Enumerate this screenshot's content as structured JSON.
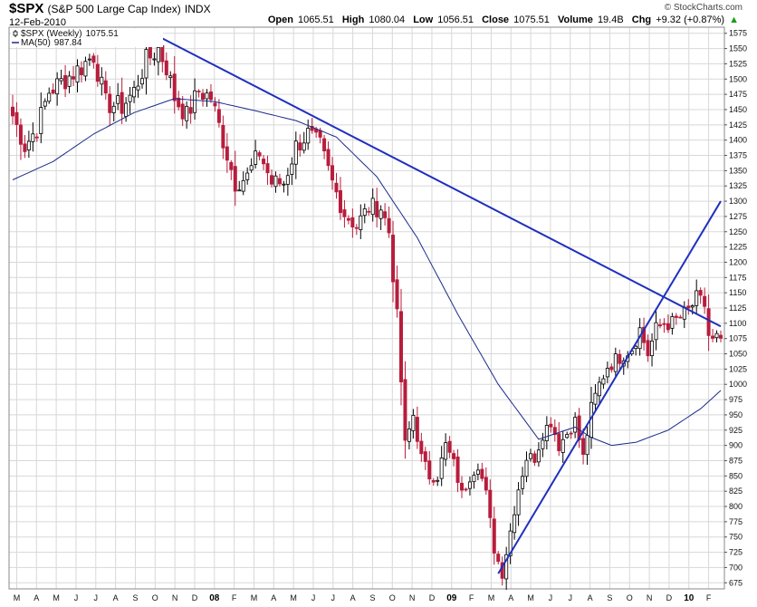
{
  "header": {
    "symbol": "$SPX",
    "description": "(S&P 500 Large Cap Index)",
    "exchange": "INDX",
    "date": "12-Feb-2010",
    "brand": "© StockCharts.com",
    "open_label": "Open",
    "open": "1065.51",
    "high_label": "High",
    "high": "1080.04",
    "low_label": "Low",
    "low": "1056.51",
    "close_label": "Close",
    "close": "1075.51",
    "volume_label": "Volume",
    "volume": "19.4B",
    "chg_label": "Chg",
    "chg": "+9.32 (+0.87%)",
    "chg_arrow": "▲"
  },
  "colors": {
    "up": "#000000",
    "down": "#b81d3c",
    "ma": "#1b2a8a",
    "trendline": "#1f2fbf",
    "grid": "#d8d8d8"
  },
  "chart_data": {
    "type": "candlestick",
    "title": "$SPX (S&P 500 Large Cap Index) INDX",
    "timeframe": "Weekly",
    "ylim": [
      665,
      1585
    ],
    "y_axis_side": "right",
    "yticks": [
      675,
      700,
      725,
      750,
      775,
      800,
      825,
      850,
      875,
      900,
      925,
      950,
      975,
      1000,
      1025,
      1050,
      1075,
      1100,
      1125,
      1150,
      1175,
      1200,
      1225,
      1250,
      1275,
      1300,
      1325,
      1350,
      1375,
      1400,
      1425,
      1450,
      1475,
      1500,
      1525,
      1550,
      1575
    ],
    "x_labels": [
      "M",
      "A",
      "M",
      "J",
      "J",
      "A",
      "S",
      "O",
      "N",
      "D",
      "08",
      "F",
      "M",
      "A",
      "M",
      "J",
      "J",
      "A",
      "S",
      "O",
      "N",
      "D",
      "09",
      "F",
      "M",
      "A",
      "M",
      "J",
      "J",
      "A",
      "S",
      "O",
      "N",
      "D",
      "10",
      "F"
    ],
    "x_label_years": [
      "08",
      "09",
      "10"
    ],
    "legend": [
      {
        "name": "$SPX (Weekly)",
        "value": "1075.51",
        "style": "candles"
      },
      {
        "name": "MA(50)",
        "value": "987.84",
        "style": "line"
      }
    ],
    "close_path": [
      [
        0,
        1440
      ],
      [
        3,
        1390
      ],
      [
        6,
        1420
      ],
      [
        9,
        1480
      ],
      [
        13,
        1500
      ],
      [
        17,
        1520
      ],
      [
        20,
        1540
      ],
      [
        23,
        1460
      ],
      [
        27,
        1455
      ],
      [
        30,
        1480
      ],
      [
        33,
        1530
      ],
      [
        36,
        1550
      ],
      [
        38,
        1520
      ],
      [
        40,
        1470
      ],
      [
        43,
        1440
      ],
      [
        46,
        1480
      ],
      [
        49,
        1470
      ],
      [
        52,
        1400
      ],
      [
        55,
        1330
      ],
      [
        58,
        1340
      ],
      [
        61,
        1380
      ],
      [
        64,
        1330
      ],
      [
        67,
        1330
      ],
      [
        70,
        1390
      ],
      [
        73,
        1410
      ],
      [
        76,
        1390
      ],
      [
        79,
        1330
      ],
      [
        82,
        1280
      ],
      [
        85,
        1260
      ],
      [
        88,
        1290
      ],
      [
        91,
        1290
      ],
      [
        93,
        1250
      ],
      [
        95,
        1110
      ],
      [
        97,
        900
      ],
      [
        99,
        950
      ],
      [
        101,
        880
      ],
      [
        103,
        850
      ],
      [
        105,
        850
      ],
      [
        107,
        900
      ],
      [
        109,
        870
      ],
      [
        111,
        820
      ],
      [
        113,
        850
      ],
      [
        115,
        870
      ],
      [
        117,
        820
      ],
      [
        119,
        730
      ],
      [
        121,
        690
      ],
      [
        123,
        760
      ],
      [
        125,
        830
      ],
      [
        127,
        880
      ],
      [
        129,
        880
      ],
      [
        131,
        920
      ],
      [
        133,
        940
      ],
      [
        135,
        900
      ],
      [
        137,
        920
      ],
      [
        139,
        940
      ],
      [
        141,
        880
      ],
      [
        143,
        960
      ],
      [
        145,
        1000
      ],
      [
        147,
        1030
      ],
      [
        149,
        1040
      ],
      [
        151,
        1050
      ],
      [
        153,
        1060
      ],
      [
        155,
        1090
      ],
      [
        157,
        1050
      ],
      [
        159,
        1090
      ],
      [
        161,
        1100
      ],
      [
        163,
        1100
      ],
      [
        165,
        1110
      ],
      [
        167,
        1120
      ],
      [
        169,
        1140
      ],
      [
        171,
        1130
      ],
      [
        172,
        1080
      ],
      [
        173,
        1070
      ],
      [
        174,
        1075.51
      ]
    ],
    "ma50": [
      [
        0,
        1335
      ],
      [
        10,
        1365
      ],
      [
        20,
        1410
      ],
      [
        30,
        1445
      ],
      [
        40,
        1468
      ],
      [
        50,
        1463
      ],
      [
        60,
        1448
      ],
      [
        70,
        1432
      ],
      [
        80,
        1405
      ],
      [
        90,
        1340
      ],
      [
        100,
        1240
      ],
      [
        110,
        1115
      ],
      [
        120,
        1000
      ],
      [
        130,
        910
      ],
      [
        139,
        930
      ],
      [
        143,
        913
      ],
      [
        148,
        900
      ],
      [
        154,
        905
      ],
      [
        162,
        925
      ],
      [
        170,
        960
      ],
      [
        175,
        990
      ]
    ],
    "trendlines": [
      {
        "from": [
          36,
          1570
        ],
        "to": [
          175,
          1095
        ]
      },
      {
        "from": [
          120,
          690
        ],
        "to": [
          175,
          1300
        ]
      }
    ]
  }
}
